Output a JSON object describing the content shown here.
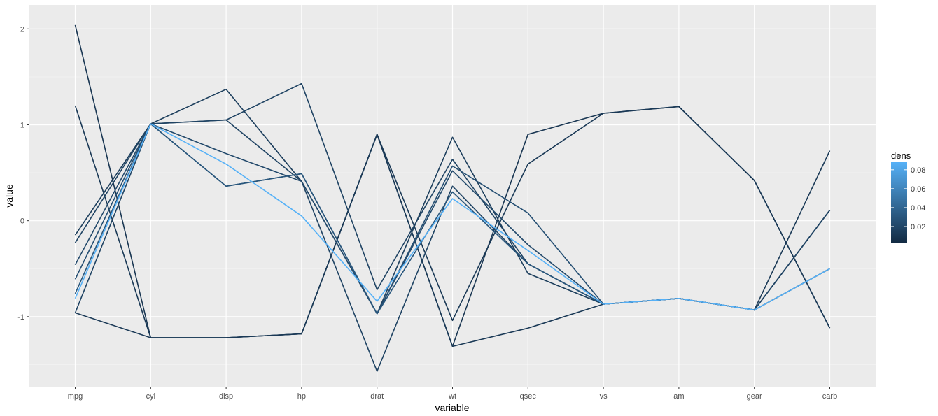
{
  "chart_data": {
    "type": "line",
    "title": "",
    "xlabel": "variable",
    "ylabel": "value",
    "categories": [
      "mpg",
      "cyl",
      "disp",
      "hp",
      "drat",
      "wt",
      "qsec",
      "vs",
      "am",
      "gear",
      "carb"
    ],
    "ylim": [
      -1.73,
      2.25
    ],
    "y_ticks": [
      -1,
      0,
      1,
      2
    ],
    "y_tick_labels": [
      "-1",
      "0",
      "1",
      "2"
    ],
    "grid": true,
    "legend": {
      "title": "dens",
      "position": "right",
      "tick_values": [
        0.02,
        0.04,
        0.06,
        0.08
      ],
      "tick_labels": [
        "0.02",
        "0.04",
        "0.06",
        "0.08"
      ],
      "range": [
        0.003,
        0.088
      ],
      "color_low": "#132B43",
      "color_high": "#56B1F7"
    },
    "series": [
      {
        "dens": 0.01,
        "values": [
          2.04,
          -1.22,
          -1.22,
          -1.18,
          0.9,
          -1.31,
          0.9,
          1.12,
          1.19,
          0.42,
          -1.12
        ]
      },
      {
        "dens": 0.012,
        "values": [
          1.2,
          -1.22,
          -1.22,
          -1.18,
          0.9,
          -1.04,
          0.59,
          1.12,
          1.19,
          0.42,
          -1.12
        ]
      },
      {
        "dens": 0.012,
        "values": [
          -0.96,
          -1.22,
          -1.22,
          -1.18,
          0.9,
          -1.31,
          -1.12,
          -0.87,
          -0.81,
          -0.93,
          0.73
        ]
      },
      {
        "dens": 0.015,
        "values": [
          -0.15,
          1.01,
          1.37,
          0.41,
          -0.97,
          0.87,
          -0.55,
          -0.87,
          -0.81,
          -0.93,
          0.11
        ]
      },
      {
        "dens": 0.018,
        "values": [
          -0.23,
          1.01,
          1.05,
          1.43,
          -0.72,
          0.64,
          -0.45,
          -0.87,
          -0.81,
          -0.93,
          0.11
        ]
      },
      {
        "dens": 0.018,
        "values": [
          -0.96,
          1.01,
          1.05,
          0.41,
          -1.57,
          0.36,
          -0.45,
          -0.87,
          -0.81,
          -0.93,
          0.11
        ]
      },
      {
        "dens": 0.022,
        "values": [
          -0.46,
          1.01,
          0.7,
          0.41,
          -0.97,
          0.52,
          -0.25,
          -0.87,
          -0.81,
          -0.93,
          -0.5
        ]
      },
      {
        "dens": 0.025,
        "values": [
          -0.61,
          1.01,
          0.36,
          0.49,
          -0.97,
          0.57,
          0.08,
          -0.87,
          -0.81,
          -0.93,
          -0.5
        ]
      },
      {
        "dens": 0.03,
        "values": [
          -0.76,
          1.01,
          0.36,
          0.49,
          -0.97,
          0.3,
          -0.45,
          -0.87,
          -0.81,
          -0.93,
          -0.5
        ]
      },
      {
        "dens": 0.088,
        "values": [
          -0.81,
          1.01,
          0.59,
          0.05,
          -0.84,
          0.23,
          -0.31,
          -0.87,
          -0.81,
          -0.93,
          -0.5
        ]
      }
    ]
  }
}
